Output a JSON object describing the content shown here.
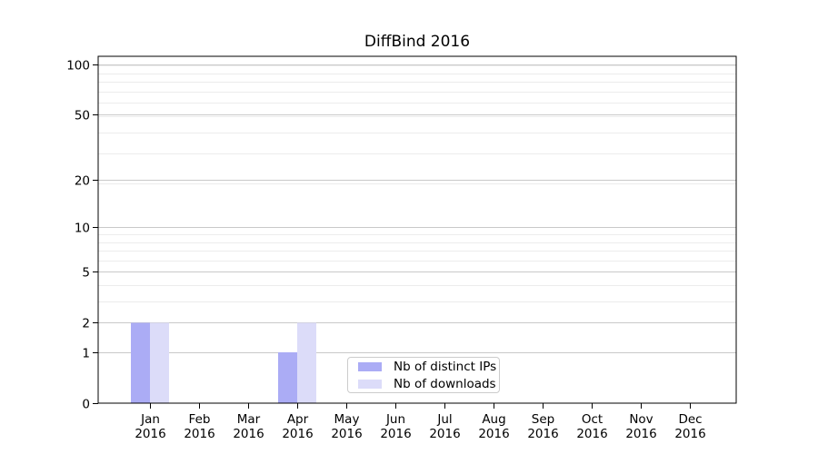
{
  "chart_data": {
    "type": "bar",
    "title": "DiffBind 2016",
    "year": "2016",
    "categories": [
      "Jan",
      "Feb",
      "Mar",
      "Apr",
      "May",
      "Jun",
      "Jul",
      "Aug",
      "Sep",
      "Oct",
      "Nov",
      "Dec"
    ],
    "series": [
      {
        "name": "Nb of distinct IPs",
        "color": "#abacf5",
        "values": [
          2,
          0,
          0,
          1,
          0,
          0,
          0,
          0,
          0,
          0,
          0,
          0
        ]
      },
      {
        "name": "Nb of downloads",
        "color": "#dcdcf9",
        "values": [
          2,
          0,
          0,
          2,
          0,
          0,
          0,
          0,
          0,
          0,
          0,
          0
        ]
      }
    ],
    "y_scale": "log10(1+value)",
    "y_tick_values": [
      0,
      1,
      2,
      5,
      10,
      20,
      50,
      100
    ],
    "y_tick_labels": [
      "0",
      "1",
      "2",
      "5",
      "10",
      "20",
      "50",
      "100"
    ],
    "y_minor_grid_values": [
      1,
      2,
      3,
      4,
      5,
      6,
      7,
      8,
      9,
      19,
      29,
      39,
      49,
      59,
      69,
      79,
      89,
      99
    ],
    "ylim": [
      0,
      112
    ],
    "grid": true,
    "legend_position": "lower center",
    "colors": {
      "background": "#ffffff",
      "axis": "#000000",
      "tick_label": "#000000",
      "major_grid": "#c9c9c9",
      "minor_grid": "#ececec",
      "legend_border": "#cccccc"
    }
  }
}
